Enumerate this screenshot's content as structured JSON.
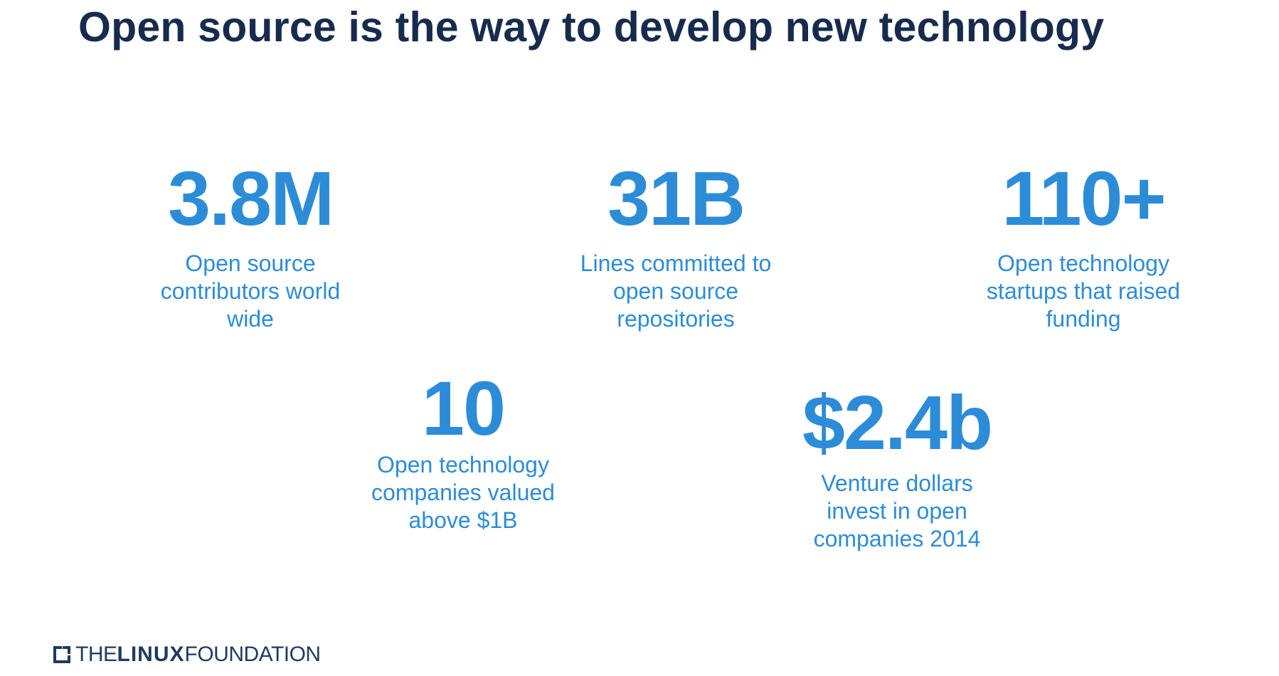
{
  "slide": {
    "title": "Open source is the way to develop new technology"
  },
  "stats": {
    "contributors": {
      "value": "3.8M",
      "label_lines": [
        "Open source",
        "contributors world",
        "wide"
      ]
    },
    "lines": {
      "value": "31B",
      "label_lines": [
        "Lines committed to",
        "open source",
        "repositories"
      ]
    },
    "startups": {
      "value": "110+",
      "label_lines": [
        "Open technology",
        "startups that raised",
        "funding"
      ]
    },
    "unicorns": {
      "value": "10",
      "label_lines": [
        "Open technology",
        "companies valued",
        "above $1B"
      ]
    },
    "venture": {
      "value": "$2.4b",
      "label_lines": [
        "Venture dollars",
        "invest in open",
        "companies 2014"
      ]
    }
  },
  "footer": {
    "logo": {
      "the": "THE",
      "linux": "LINUX",
      "foundation": "FOUNDATION"
    }
  },
  "colors": {
    "title": "#172b4d",
    "accent": "#2d8cd8",
    "logo": "#1e3a5f"
  }
}
